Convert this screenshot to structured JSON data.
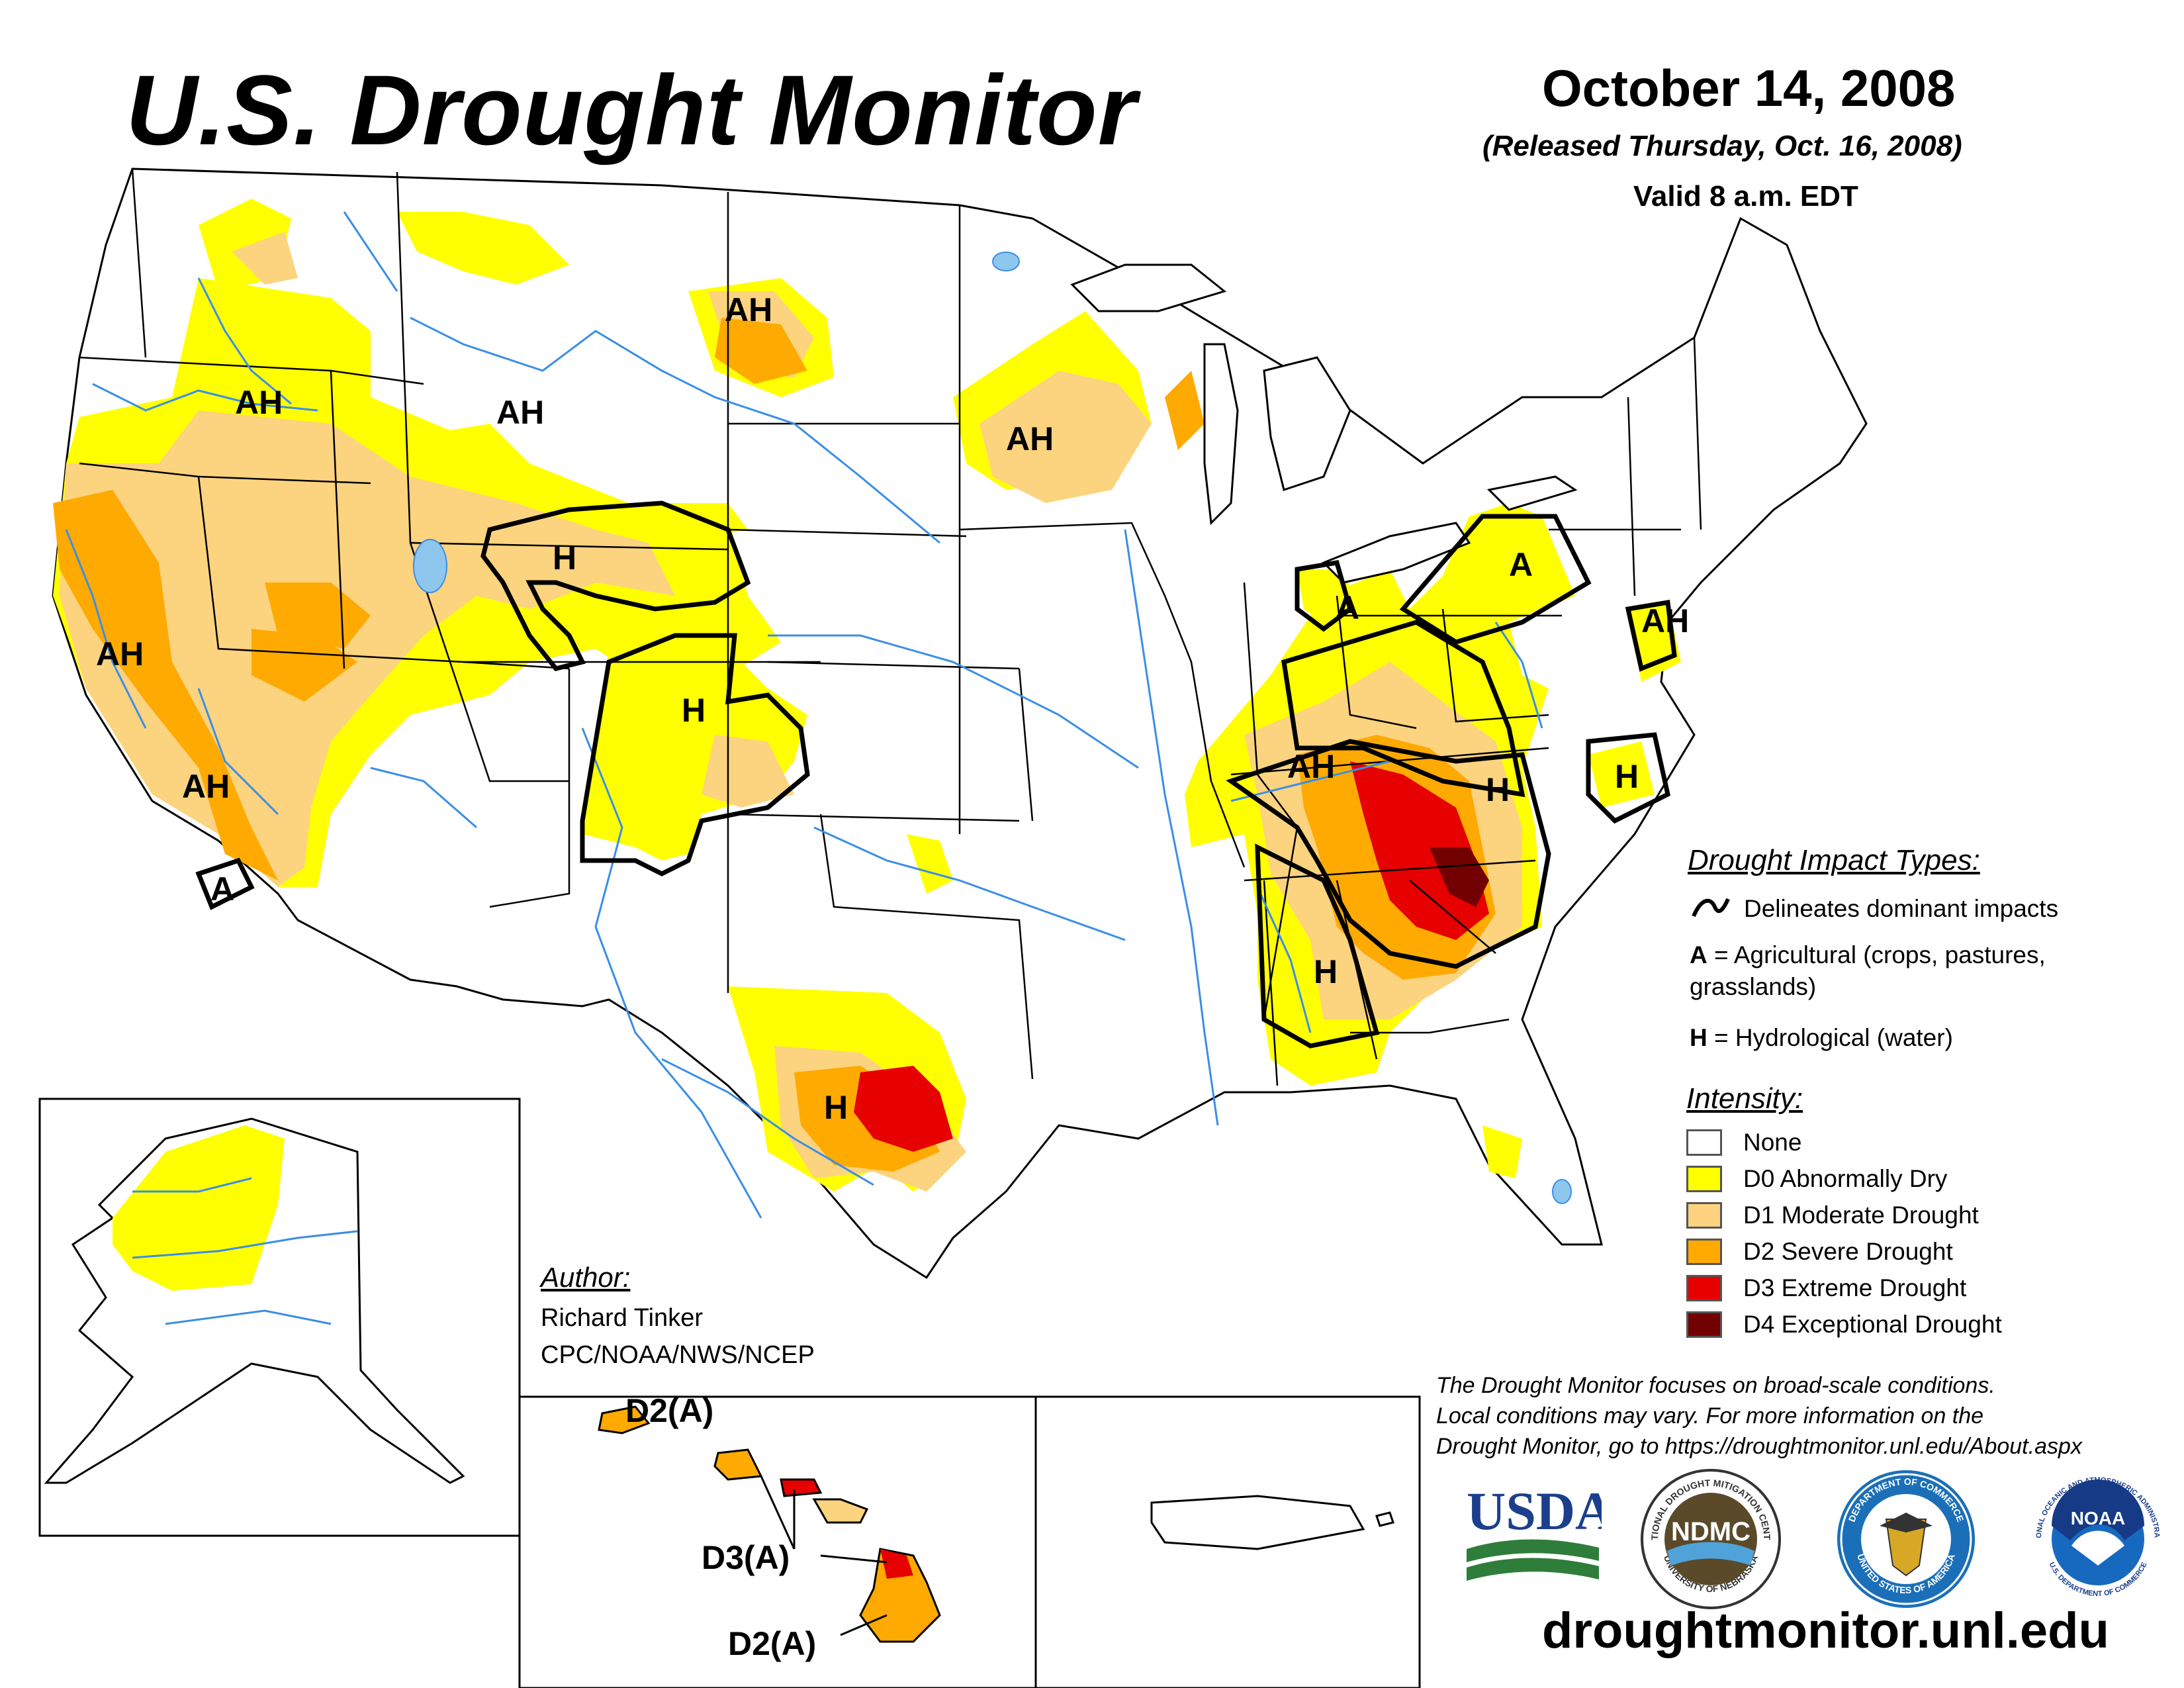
{
  "header": {
    "title": "U.S. Drought Monitor",
    "date": "October 14, 2008",
    "released": "(Released Thursday, Oct. 16, 2008)",
    "valid": "Valid 8 a.m. EDT"
  },
  "map_labels": {
    "ah_pacific_nw": "AH",
    "ah_n_rockies": "AH",
    "ah_n_dakota": "AH",
    "ah_upper_midwest": "AH",
    "h_wyoming": "H",
    "h_colorado": "H",
    "ah_california": "AH",
    "ah_s_california": "AH",
    "a_s_california": "A",
    "a_ohio": "A",
    "a_pennsylvania": "A",
    "ah_mid_atlantic": "AH",
    "ah_tennessee": "AH",
    "h_carolinas": "H",
    "h_nc_coast": "H",
    "h_mississippi": "H",
    "h_texas": "H",
    "hi_d2_top": "D2(A)",
    "hi_d3": "D3(A)",
    "hi_d2_bottom": "D2(A)"
  },
  "legend": {
    "impact_title": "Drought Impact Types:",
    "delineates": "Delineates dominant impacts",
    "a_key": "A",
    "a_text": " = Agricultural (crops, pastures,",
    "a_text2": "grasslands)",
    "h_key": "H",
    "h_text": " = Hydrological (water)",
    "intensity_title": "Intensity:",
    "categories": [
      {
        "label": "None",
        "color": "#ffffff"
      },
      {
        "label": "D0 Abnormally Dry",
        "color": "#ffff00"
      },
      {
        "label": "D1 Moderate Drought",
        "color": "#fcd37f"
      },
      {
        "label": "D2 Severe Drought",
        "color": "#ffaa00"
      },
      {
        "label": "D3 Extreme Drought",
        "color": "#e60000"
      },
      {
        "label": "D4 Exceptional Drought",
        "color": "#730000"
      }
    ]
  },
  "author": {
    "heading": "Author:",
    "name": "Richard Tinker",
    "org": "CPC/NOAA/NWS/NCEP"
  },
  "disclaimer": {
    "line1": "The Drought Monitor focuses on broad-scale conditions.",
    "line2": "Local conditions may vary. For more information on the",
    "line3": "Drought Monitor, go to https://droughtmonitor.unl.edu/About.aspx"
  },
  "logos": {
    "usda": "USDA",
    "ndmc": "NDMC",
    "ndmc_ring_top": "NATIONAL DROUGHT MITIGATION CENTER",
    "ndmc_ring_bottom": "UNIVERSITY OF NEBRASKA",
    "commerce_ring_top": "DEPARTMENT OF COMMERCE",
    "commerce_ring_bottom": "UNITED STATES OF AMERICA",
    "noaa": "NOAA",
    "noaa_ring_top": "NATIONAL OCEANIC AND ATMOSPHERIC ADMINISTRATION",
    "noaa_ring_bottom": "U.S. DEPARTMENT OF COMMERCE"
  },
  "website": "droughtmonitor.unl.edu"
}
